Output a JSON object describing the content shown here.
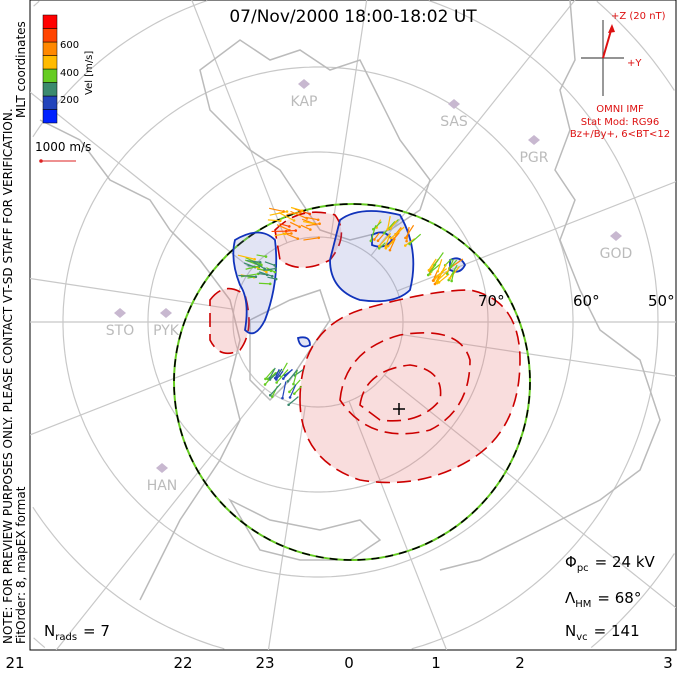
{
  "chart_data": {
    "type": "map",
    "title": "07/Nov/2000 18:00-18:02 UT",
    "coordinates": "MLT coordinates",
    "note": "NOTE: FOR PREVIEW PURPOSES ONLY. PLEASE CONTACT VT-SD STAFF FOR VERIFICATION.",
    "fit_info": "FitOrder: 8, mapEX format",
    "colorbar": {
      "label": "Vel [m/s]",
      "ticks": [
        "200",
        "400",
        "600"
      ],
      "colors": [
        "#0022ff",
        "#2244bb",
        "#3b8a6e",
        "#66cc22",
        "#ffbb00",
        "#ff8800",
        "#ff4400",
        "#ff0000"
      ]
    },
    "reference_vector": "1000 m/s",
    "imf": {
      "z_label": "+Z (20 nT)",
      "y_label": "+Y",
      "source": "OMNI IMF",
      "model": "Stat Mod: RG96",
      "condition": "Bz+/By+, 6<BT<12"
    },
    "latitude_labels": [
      "70°",
      "60°",
      "50°"
    ],
    "mlt_ticks": [
      "21",
      "22",
      "23",
      "0",
      "1",
      "2",
      "3"
    ],
    "radars": [
      "KAP",
      "SAS",
      "PGR",
      "GOD",
      "STO",
      "PYK",
      "HAN"
    ],
    "stats": {
      "phi_pc_sym": "Φ",
      "phi_pc_sub": "pc",
      "phi_pc_val": "=  24  kV",
      "lambda_hm_sym": "Λ",
      "lambda_hm_sub": "HM",
      "lambda_hm_val": "=  68°",
      "n_vc_sym": "N",
      "n_vc_sub": "vc",
      "n_vc_val": "=  141",
      "n_rads_sym": "N",
      "n_rads_sub": "rads",
      "n_rads_val": "=  7"
    },
    "colors": {
      "positive_contour": "#cc0000",
      "negative_contour": "#1133bb",
      "hm_boundary": "#000000",
      "grid": "#c8c8c8"
    }
  }
}
